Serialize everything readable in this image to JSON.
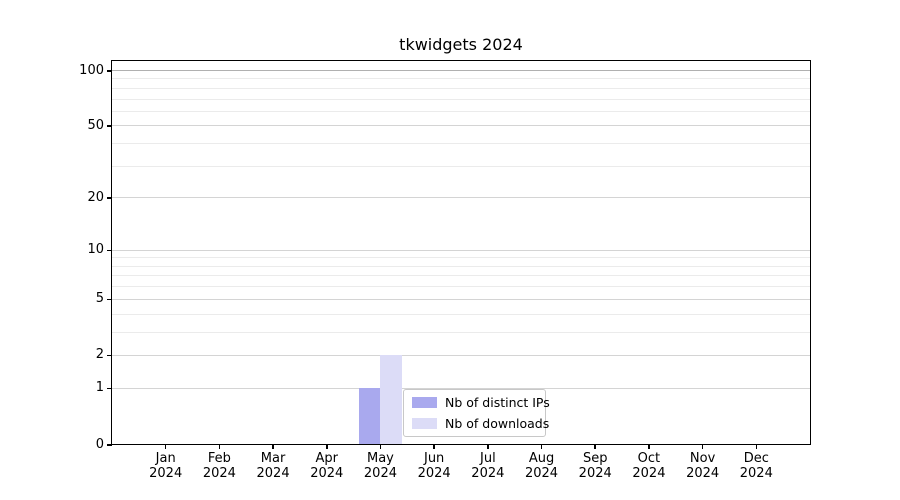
{
  "title": "tkwidgets 2024",
  "chart_data": {
    "type": "bar",
    "title": "tkwidgets 2024",
    "categories": [
      "Jan 2024",
      "Feb 2024",
      "Mar 2024",
      "Apr 2024",
      "May 2024",
      "Jun 2024",
      "Jul 2024",
      "Aug 2024",
      "Sep 2024",
      "Oct 2024",
      "Nov 2024",
      "Dec 2024"
    ],
    "series": [
      {
        "name": "Nb of distinct IPs",
        "color": "#a9a9ee",
        "values": [
          0,
          0,
          0,
          0,
          1,
          0,
          0,
          0,
          0,
          0,
          0,
          0
        ]
      },
      {
        "name": "Nb of downloads",
        "color": "#dcdcf7",
        "values": [
          0,
          0,
          0,
          0,
          2,
          0,
          0,
          0,
          0,
          0,
          0,
          0
        ]
      }
    ],
    "xlabel": "",
    "ylabel": "",
    "yscale": "log1p",
    "ylim": [
      0,
      113
    ],
    "yticks_major": [
      0,
      1,
      2,
      5,
      10,
      20,
      50,
      100
    ],
    "yticks_minor": [
      3,
      4,
      6,
      7,
      8,
      9,
      30,
      40,
      60,
      70,
      80,
      90
    ],
    "grid": "horizontal, major and minor",
    "legend_position": "inside lower center"
  },
  "colors": {
    "bar_distinct_ips": "#a9a9ee",
    "bar_downloads": "#dcdcf7",
    "grid_top_line": "#b0b0b0",
    "grid_major": "#d4d4d4",
    "grid_minor": "#ebebeb",
    "spine": "#000000",
    "legend_border": "#c8c8c8"
  },
  "legend": {
    "items": [
      {
        "label": "Nb of distinct IPs"
      },
      {
        "label": "Nb of downloads"
      }
    ]
  }
}
